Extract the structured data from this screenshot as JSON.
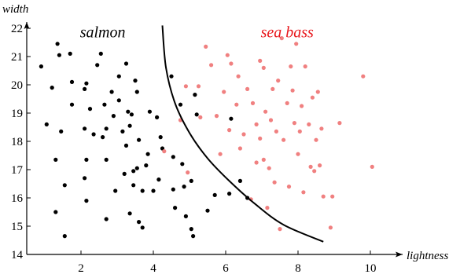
{
  "chart_data": {
    "type": "scatter",
    "xlabel": "lightness",
    "ylabel": "width",
    "xlim": [
      0.5,
      10.6
    ],
    "ylim": [
      14,
      22.3
    ],
    "x_ticks": [
      2,
      4,
      6,
      8,
      10
    ],
    "y_ticks": [
      14,
      15,
      16,
      17,
      18,
      19,
      20,
      21,
      22
    ],
    "grid": false,
    "annotations": [
      {
        "text": "salmon",
        "color": "#000000",
        "x": 2.6,
        "y": 21.9
      },
      {
        "text": "sea bass",
        "color": "#e8161b",
        "x": 7.7,
        "y": 21.9
      }
    ],
    "series": [
      {
        "class": "salmon",
        "color": "#000000",
        "points": [
          [
            0.9,
            20.65
          ],
          [
            1.2,
            19.9
          ],
          [
            1.35,
            21.45
          ],
          [
            1.4,
            21.05
          ],
          [
            1.7,
            21.1
          ],
          [
            1.05,
            18.6
          ],
          [
            1.45,
            18.35
          ],
          [
            1.3,
            17.35
          ],
          [
            1.55,
            16.45
          ],
          [
            1.3,
            15.5
          ],
          [
            1.55,
            14.65
          ],
          [
            1.75,
            20.1
          ],
          [
            1.75,
            19.3
          ],
          [
            2.15,
            20.05
          ],
          [
            2.1,
            19.85
          ],
          [
            2.25,
            19.15
          ],
          [
            2.1,
            18.45
          ],
          [
            2.35,
            18.25
          ],
          [
            2.15,
            17.35
          ],
          [
            2.1,
            16.7
          ],
          [
            2.15,
            15.9
          ],
          [
            2.7,
            15.25
          ],
          [
            2.45,
            20.7
          ],
          [
            2.55,
            21.1
          ],
          [
            2.65,
            19.3
          ],
          [
            2.7,
            18.45
          ],
          [
            2.85,
            19.75
          ],
          [
            2.9,
            18.9
          ],
          [
            2.6,
            18.15
          ],
          [
            2.7,
            17.35
          ],
          [
            2.95,
            16.25
          ],
          [
            3.05,
            20.3
          ],
          [
            3.05,
            19.45
          ],
          [
            3.25,
            20.75
          ],
          [
            3.3,
            19.05
          ],
          [
            3.35,
            18.55
          ],
          [
            3.15,
            18.35
          ],
          [
            3.25,
            17.85
          ],
          [
            3.2,
            16.85
          ],
          [
            3.45,
            16.95
          ],
          [
            3.45,
            16.45
          ],
          [
            3.35,
            15.45
          ],
          [
            3.5,
            20.15
          ],
          [
            3.55,
            19.75
          ],
          [
            3.4,
            18.95
          ],
          [
            3.6,
            18.05
          ],
          [
            3.55,
            17.05
          ],
          [
            3.8,
            17.15
          ],
          [
            3.7,
            16.25
          ],
          [
            3.6,
            15.15
          ],
          [
            3.7,
            14.95
          ],
          [
            3.9,
            19.05
          ],
          [
            4.1,
            18.85
          ],
          [
            4.2,
            18.15
          ],
          [
            4.25,
            17.75
          ],
          [
            3.85,
            17.55
          ],
          [
            4.15,
            16.65
          ],
          [
            4.0,
            16.25
          ],
          [
            4.5,
            20.3
          ],
          [
            4.75,
            19.3
          ],
          [
            4.55,
            17.45
          ],
          [
            4.8,
            17.2
          ],
          [
            4.55,
            16.3
          ],
          [
            4.85,
            16.4
          ],
          [
            4.6,
            15.65
          ],
          [
            4.9,
            15.35
          ],
          [
            5.05,
            16.6
          ],
          [
            5.15,
            19.65
          ],
          [
            5.2,
            18.95
          ],
          [
            5.1,
            14.65
          ],
          [
            5.05,
            14.9
          ],
          [
            5.5,
            15.55
          ],
          [
            5.7,
            16.1
          ],
          [
            6.1,
            16.15
          ],
          [
            6.15,
            18.8
          ],
          [
            6.4,
            16.6
          ],
          [
            6.6,
            16.0
          ]
        ]
      },
      {
        "class": "sea bass",
        "color": "#f08080",
        "points": [
          [
            4.3,
            17.65
          ],
          [
            4.75,
            18.75
          ],
          [
            4.9,
            19.95
          ],
          [
            4.95,
            16.9
          ],
          [
            5.25,
            19.95
          ],
          [
            5.3,
            18.85
          ],
          [
            5.45,
            21.35
          ],
          [
            5.6,
            20.7
          ],
          [
            5.75,
            18.9
          ],
          [
            5.85,
            17.55
          ],
          [
            5.95,
            19.75
          ],
          [
            6.05,
            21.05
          ],
          [
            6.1,
            18.4
          ],
          [
            6.15,
            20.75
          ],
          [
            6.3,
            19.3
          ],
          [
            6.35,
            20.3
          ],
          [
            6.4,
            17.75
          ],
          [
            6.5,
            18.25
          ],
          [
            6.6,
            19.85
          ],
          [
            6.7,
            15.95
          ],
          [
            6.75,
            19.35
          ],
          [
            6.85,
            17.25
          ],
          [
            6.85,
            18.6
          ],
          [
            6.95,
            18.1
          ],
          [
            6.95,
            20.85
          ],
          [
            7.05,
            20.6
          ],
          [
            7.05,
            17.35
          ],
          [
            7.1,
            19.05
          ],
          [
            7.15,
            15.65
          ],
          [
            7.2,
            17.05
          ],
          [
            7.25,
            18.75
          ],
          [
            7.3,
            19.85
          ],
          [
            7.35,
            16.55
          ],
          [
            7.4,
            18.35
          ],
          [
            7.45,
            20.15
          ],
          [
            7.5,
            14.9
          ],
          [
            7.55,
            21.65
          ],
          [
            7.6,
            18.05
          ],
          [
            7.7,
            19.35
          ],
          [
            7.75,
            16.4
          ],
          [
            7.8,
            20.65
          ],
          [
            7.85,
            19.8
          ],
          [
            7.9,
            18.65
          ],
          [
            7.95,
            21.45
          ],
          [
            8.0,
            17.55
          ],
          [
            8.05,
            18.35
          ],
          [
            8.1,
            19.25
          ],
          [
            8.15,
            16.2
          ],
          [
            8.2,
            20.65
          ],
          [
            8.3,
            18.6
          ],
          [
            8.35,
            17.1
          ],
          [
            8.4,
            19.55
          ],
          [
            8.45,
            16.95
          ],
          [
            8.5,
            18.05
          ],
          [
            8.55,
            19.75
          ],
          [
            8.6,
            17.15
          ],
          [
            8.65,
            18.45
          ],
          [
            8.7,
            16.05
          ],
          [
            8.9,
            14.95
          ],
          [
            8.95,
            16.05
          ],
          [
            9.15,
            18.65
          ],
          [
            9.8,
            20.3
          ],
          [
            10.05,
            17.1
          ]
        ]
      }
    ],
    "decision_boundary": [
      [
        4.25,
        22.1
      ],
      [
        4.35,
        20.6
      ],
      [
        4.6,
        19.35
      ],
      [
        5.0,
        18.3
      ],
      [
        5.5,
        17.4
      ],
      [
        6.1,
        16.6
      ],
      [
        6.8,
        15.8
      ],
      [
        7.6,
        15.05
      ],
      [
        8.7,
        14.45
      ]
    ]
  }
}
